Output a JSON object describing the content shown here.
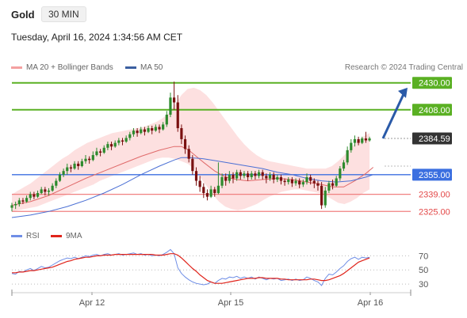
{
  "header": {
    "title": "Gold",
    "timeframe": "30 MIN",
    "datetime": "Tuesday, April 16, 2024 1:34:56 AM CET"
  },
  "legend": {
    "ma_bollinger": "MA 20 + Bollinger Bands",
    "ma50": "MA 50",
    "credit": "Research © 2024 Trading Central"
  },
  "rsi_legend": {
    "rsi": "RSI",
    "ma": "9MA"
  },
  "colors": {
    "bullish": "#2d8a2d",
    "bearish": "#7a1010",
    "ma20": "#e06a6a",
    "ma50": "#4a6fd4",
    "bollinger": "#fcd6d6",
    "resistance": "#5ab023",
    "pivot": "#3b6fe0",
    "support": "#f08080",
    "price_tag": "#333333",
    "arrow": "#2a5aa8",
    "rsi": "#6f8ee6",
    "rsi_ma": "#e0241b"
  },
  "chart_data": [
    {
      "type": "candlestick",
      "title": "Gold",
      "x_ticks": [
        "Apr 12",
        "Apr 15",
        "Apr 16"
      ],
      "ylim": [
        2320,
        2435
      ],
      "levels": [
        {
          "label": "2430.00",
          "value": 2430.0,
          "kind": "resistance"
        },
        {
          "label": "2408.00",
          "value": 2408.0,
          "kind": "resistance"
        },
        {
          "label": "2384.59",
          "value": 2384.59,
          "kind": "current"
        },
        {
          "label": "2355.00",
          "value": 2355.0,
          "kind": "pivot"
        },
        {
          "label": "2339.00",
          "value": 2339.0,
          "kind": "support"
        },
        {
          "label": "2325.00",
          "value": 2325.0,
          "kind": "support"
        }
      ],
      "forecast_arrow": {
        "from": 2384.6,
        "to": 2426
      },
      "candles": [
        [
          2328,
          2330,
          2325,
          2332
        ],
        [
          2330,
          2331,
          2327,
          2333
        ],
        [
          2331,
          2334,
          2329,
          2336
        ],
        [
          2334,
          2333,
          2331,
          2336
        ],
        [
          2333,
          2336,
          2332,
          2338
        ],
        [
          2336,
          2339,
          2334,
          2341
        ],
        [
          2339,
          2337,
          2335,
          2341
        ],
        [
          2337,
          2340,
          2336,
          2342
        ],
        [
          2340,
          2343,
          2339,
          2345
        ],
        [
          2343,
          2341,
          2338,
          2345
        ],
        [
          2341,
          2342,
          2338,
          2344
        ],
        [
          2342,
          2346,
          2341,
          2348
        ],
        [
          2346,
          2350,
          2344,
          2352
        ],
        [
          2350,
          2355,
          2349,
          2357
        ],
        [
          2355,
          2358,
          2353,
          2360
        ],
        [
          2358,
          2361,
          2355,
          2364
        ],
        [
          2361,
          2360,
          2357,
          2363
        ],
        [
          2360,
          2364,
          2359,
          2366
        ],
        [
          2364,
          2362,
          2359,
          2366
        ],
        [
          2362,
          2366,
          2361,
          2368
        ],
        [
          2366,
          2368,
          2364,
          2371
        ],
        [
          2368,
          2367,
          2364,
          2370
        ],
        [
          2367,
          2371,
          2366,
          2374
        ],
        [
          2371,
          2374,
          2370,
          2377
        ],
        [
          2374,
          2373,
          2370,
          2376
        ],
        [
          2373,
          2377,
          2372,
          2379
        ],
        [
          2377,
          2380,
          2375,
          2382
        ],
        [
          2380,
          2378,
          2375,
          2382
        ],
        [
          2378,
          2381,
          2377,
          2383
        ],
        [
          2381,
          2383,
          2379,
          2385
        ],
        [
          2383,
          2382,
          2379,
          2385
        ],
        [
          2382,
          2385,
          2381,
          2387
        ],
        [
          2385,
          2388,
          2383,
          2390
        ],
        [
          2388,
          2391,
          2386,
          2393
        ],
        [
          2391,
          2389,
          2386,
          2393
        ],
        [
          2389,
          2392,
          2388,
          2394
        ],
        [
          2392,
          2390,
          2387,
          2394
        ],
        [
          2390,
          2393,
          2389,
          2395
        ],
        [
          2393,
          2391,
          2388,
          2395
        ],
        [
          2391,
          2394,
          2390,
          2396
        ],
        [
          2394,
          2392,
          2389,
          2396
        ],
        [
          2392,
          2396,
          2391,
          2398
        ],
        [
          2396,
          2404,
          2394,
          2407
        ],
        [
          2404,
          2418,
          2402,
          2422
        ],
        [
          2418,
          2414,
          2408,
          2431
        ],
        [
          2414,
          2393,
          2390,
          2420
        ],
        [
          2393,
          2384,
          2380,
          2396
        ],
        [
          2384,
          2376,
          2372,
          2387
        ],
        [
          2376,
          2368,
          2365,
          2379
        ],
        [
          2368,
          2358,
          2355,
          2371
        ],
        [
          2358,
          2350,
          2346,
          2361
        ],
        [
          2350,
          2345,
          2341,
          2354
        ],
        [
          2345,
          2340,
          2336,
          2348
        ],
        [
          2340,
          2337,
          2334,
          2343
        ],
        [
          2337,
          2343,
          2336,
          2346
        ],
        [
          2343,
          2340,
          2337,
          2345
        ],
        [
          2340,
          2346,
          2339,
          2365
        ],
        [
          2346,
          2353,
          2344,
          2356
        ],
        [
          2353,
          2350,
          2346,
          2356
        ],
        [
          2350,
          2355,
          2348,
          2358
        ],
        [
          2355,
          2352,
          2348,
          2357
        ],
        [
          2352,
          2357,
          2350,
          2359
        ],
        [
          2357,
          2354,
          2351,
          2359
        ],
        [
          2354,
          2356,
          2352,
          2358
        ],
        [
          2356,
          2353,
          2350,
          2358
        ],
        [
          2353,
          2356,
          2351,
          2358
        ],
        [
          2356,
          2354,
          2351,
          2358
        ],
        [
          2354,
          2357,
          2352,
          2359
        ],
        [
          2357,
          2354,
          2351,
          2359
        ],
        [
          2354,
          2352,
          2348,
          2356
        ],
        [
          2352,
          2355,
          2350,
          2357
        ],
        [
          2355,
          2351,
          2348,
          2357
        ],
        [
          2351,
          2353,
          2349,
          2355
        ],
        [
          2353,
          2350,
          2347,
          2355
        ],
        [
          2350,
          2349,
          2346,
          2352
        ],
        [
          2349,
          2351,
          2347,
          2353
        ],
        [
          2351,
          2348,
          2345,
          2353
        ],
        [
          2348,
          2350,
          2346,
          2352
        ],
        [
          2350,
          2347,
          2344,
          2352
        ],
        [
          2347,
          2349,
          2345,
          2351
        ],
        [
          2349,
          2353,
          2347,
          2356
        ],
        [
          2353,
          2350,
          2347,
          2355
        ],
        [
          2350,
          2348,
          2344,
          2352
        ],
        [
          2348,
          2346,
          2342,
          2350
        ],
        [
          2346,
          2330,
          2327,
          2349
        ],
        [
          2330,
          2342,
          2328,
          2345
        ],
        [
          2342,
          2348,
          2340,
          2350
        ],
        [
          2348,
          2346,
          2343,
          2351
        ],
        [
          2346,
          2352,
          2345,
          2354
        ],
        [
          2352,
          2360,
          2350,
          2362
        ],
        [
          2360,
          2365,
          2358,
          2367
        ],
        [
          2365,
          2375,
          2363,
          2378
        ],
        [
          2375,
          2381,
          2373,
          2384
        ],
        [
          2381,
          2384,
          2378,
          2387
        ],
        [
          2384,
          2381,
          2379,
          2386
        ],
        [
          2381,
          2384.59,
          2380,
          2386
        ],
        [
          2384.59,
          2383,
          2381,
          2390
        ],
        [
          2383,
          2384.59,
          2382,
          2386
        ]
      ],
      "bollinger": [
        [
          2339,
          2325
        ],
        [
          2342,
          2326
        ],
        [
          2345,
          2327
        ],
        [
          2348,
          2328
        ],
        [
          2352,
          2329
        ],
        [
          2356,
          2331
        ],
        [
          2360,
          2333
        ],
        [
          2364,
          2335
        ],
        [
          2368,
          2337
        ],
        [
          2371,
          2339
        ],
        [
          2375,
          2341
        ],
        [
          2378,
          2343
        ],
        [
          2381,
          2345
        ],
        [
          2383,
          2347
        ],
        [
          2385,
          2350
        ],
        [
          2387,
          2352
        ],
        [
          2389,
          2354
        ],
        [
          2390,
          2356
        ],
        [
          2391,
          2358
        ],
        [
          2392,
          2360
        ],
        [
          2393,
          2362
        ],
        [
          2394,
          2364
        ],
        [
          2396,
          2366
        ],
        [
          2398,
          2368
        ],
        [
          2401,
          2369
        ],
        [
          2405,
          2369
        ],
        [
          2412,
          2368
        ],
        [
          2420,
          2366
        ],
        [
          2425,
          2364
        ],
        [
          2426,
          2360
        ],
        [
          2424,
          2353
        ],
        [
          2420,
          2346
        ],
        [
          2414,
          2339
        ],
        [
          2407,
          2333
        ],
        [
          2400,
          2329
        ],
        [
          2393,
          2327
        ],
        [
          2386,
          2326
        ],
        [
          2380,
          2327
        ],
        [
          2375,
          2329
        ],
        [
          2371,
          2331
        ],
        [
          2368,
          2334
        ],
        [
          2366,
          2337
        ],
        [
          2365,
          2339
        ],
        [
          2364,
          2341
        ],
        [
          2363,
          2342
        ],
        [
          2362,
          2343
        ],
        [
          2361,
          2343
        ],
        [
          2360,
          2342
        ],
        [
          2360,
          2341
        ],
        [
          2360,
          2340
        ],
        [
          2360,
          2338
        ],
        [
          2362,
          2335
        ],
        [
          2366,
          2332
        ],
        [
          2371,
          2331
        ],
        [
          2377,
          2333
        ],
        [
          2382,
          2336
        ],
        [
          2386,
          2340
        ],
        [
          2389,
          2343
        ]
      ],
      "ma20": [
        [
          0,
          2330
        ],
        [
          5,
          2333
        ],
        [
          10,
          2338
        ],
        [
          15,
          2345
        ],
        [
          20,
          2352
        ],
        [
          25,
          2358
        ],
        [
          30,
          2364
        ],
        [
          35,
          2370
        ],
        [
          40,
          2375
        ],
        [
          44,
          2378
        ],
        [
          46,
          2378
        ],
        [
          48,
          2375
        ],
        [
          50,
          2370
        ],
        [
          52,
          2365
        ],
        [
          55,
          2358
        ],
        [
          58,
          2353
        ],
        [
          61,
          2351
        ],
        [
          64,
          2350
        ],
        [
          68,
          2351
        ],
        [
          72,
          2352
        ],
        [
          76,
          2351
        ],
        [
          80,
          2349
        ],
        [
          84,
          2347
        ],
        [
          87,
          2345
        ],
        [
          90,
          2345
        ],
        [
          93,
          2350
        ],
        [
          96,
          2356
        ],
        [
          98,
          2361
        ]
      ],
      "ma50": [
        [
          0,
          2320
        ],
        [
          5,
          2322
        ],
        [
          10,
          2325
        ],
        [
          15,
          2329
        ],
        [
          20,
          2334
        ],
        [
          25,
          2340
        ],
        [
          30,
          2347
        ],
        [
          35,
          2355
        ],
        [
          40,
          2362
        ],
        [
          44,
          2367
        ],
        [
          46,
          2369
        ],
        [
          48,
          2369
        ],
        [
          52,
          2368
        ],
        [
          56,
          2366
        ],
        [
          60,
          2364
        ],
        [
          64,
          2362
        ],
        [
          68,
          2360
        ],
        [
          72,
          2357
        ],
        [
          76,
          2355
        ],
        [
          80,
          2352
        ],
        [
          84,
          2350
        ],
        [
          88,
          2349
        ],
        [
          92,
          2350
        ],
        [
          96,
          2353
        ],
        [
          98,
          2355
        ]
      ]
    },
    {
      "type": "line",
      "title": "RSI",
      "y_ticks": [
        "70",
        "50",
        "30"
      ],
      "ylim": [
        20,
        85
      ],
      "series": [
        {
          "name": "RSI",
          "values": [
            45,
            44,
            48,
            47,
            50,
            52,
            49,
            52,
            55,
            53,
            54,
            57,
            60,
            63,
            65,
            67,
            66,
            68,
            66,
            68,
            70,
            69,
            71,
            72,
            70,
            72,
            73,
            71,
            72,
            73,
            71,
            72,
            73,
            74,
            72,
            73,
            71,
            72,
            70,
            71,
            70,
            72,
            75,
            79,
            73,
            53,
            45,
            40,
            36,
            33,
            31,
            30,
            29,
            30,
            33,
            31,
            35,
            38,
            37,
            40,
            39,
            41,
            38,
            40,
            38,
            40,
            37,
            40,
            38,
            36,
            38,
            37,
            38,
            35,
            36,
            37,
            35,
            37,
            35,
            36,
            40,
            38,
            35,
            33,
            28,
            38,
            44,
            43,
            47,
            52,
            56,
            62,
            66,
            68,
            65,
            68,
            67,
            68
          ]
        },
        {
          "name": "9MA",
          "values": [
            46,
            46,
            47,
            47,
            48,
            49,
            49,
            50,
            51,
            52,
            53,
            54,
            56,
            58,
            60,
            62,
            63,
            65,
            66,
            67,
            68,
            68,
            69,
            70,
            70,
            71,
            71,
            71,
            72,
            72,
            72,
            72,
            72,
            72,
            72,
            72,
            72,
            72,
            72,
            71,
            71,
            71,
            72,
            73,
            73,
            71,
            67,
            62,
            57,
            52,
            48,
            43,
            39,
            35,
            33,
            31,
            31,
            31,
            32,
            33,
            34,
            35,
            36,
            37,
            38,
            38,
            38,
            39,
            39,
            38,
            38,
            38,
            38,
            37,
            37,
            36,
            36,
            36,
            36,
            36,
            36,
            37,
            37,
            36,
            35,
            35,
            36,
            38,
            40,
            42,
            45,
            49,
            53,
            57,
            61,
            63,
            65,
            67
          ]
        }
      ]
    }
  ]
}
